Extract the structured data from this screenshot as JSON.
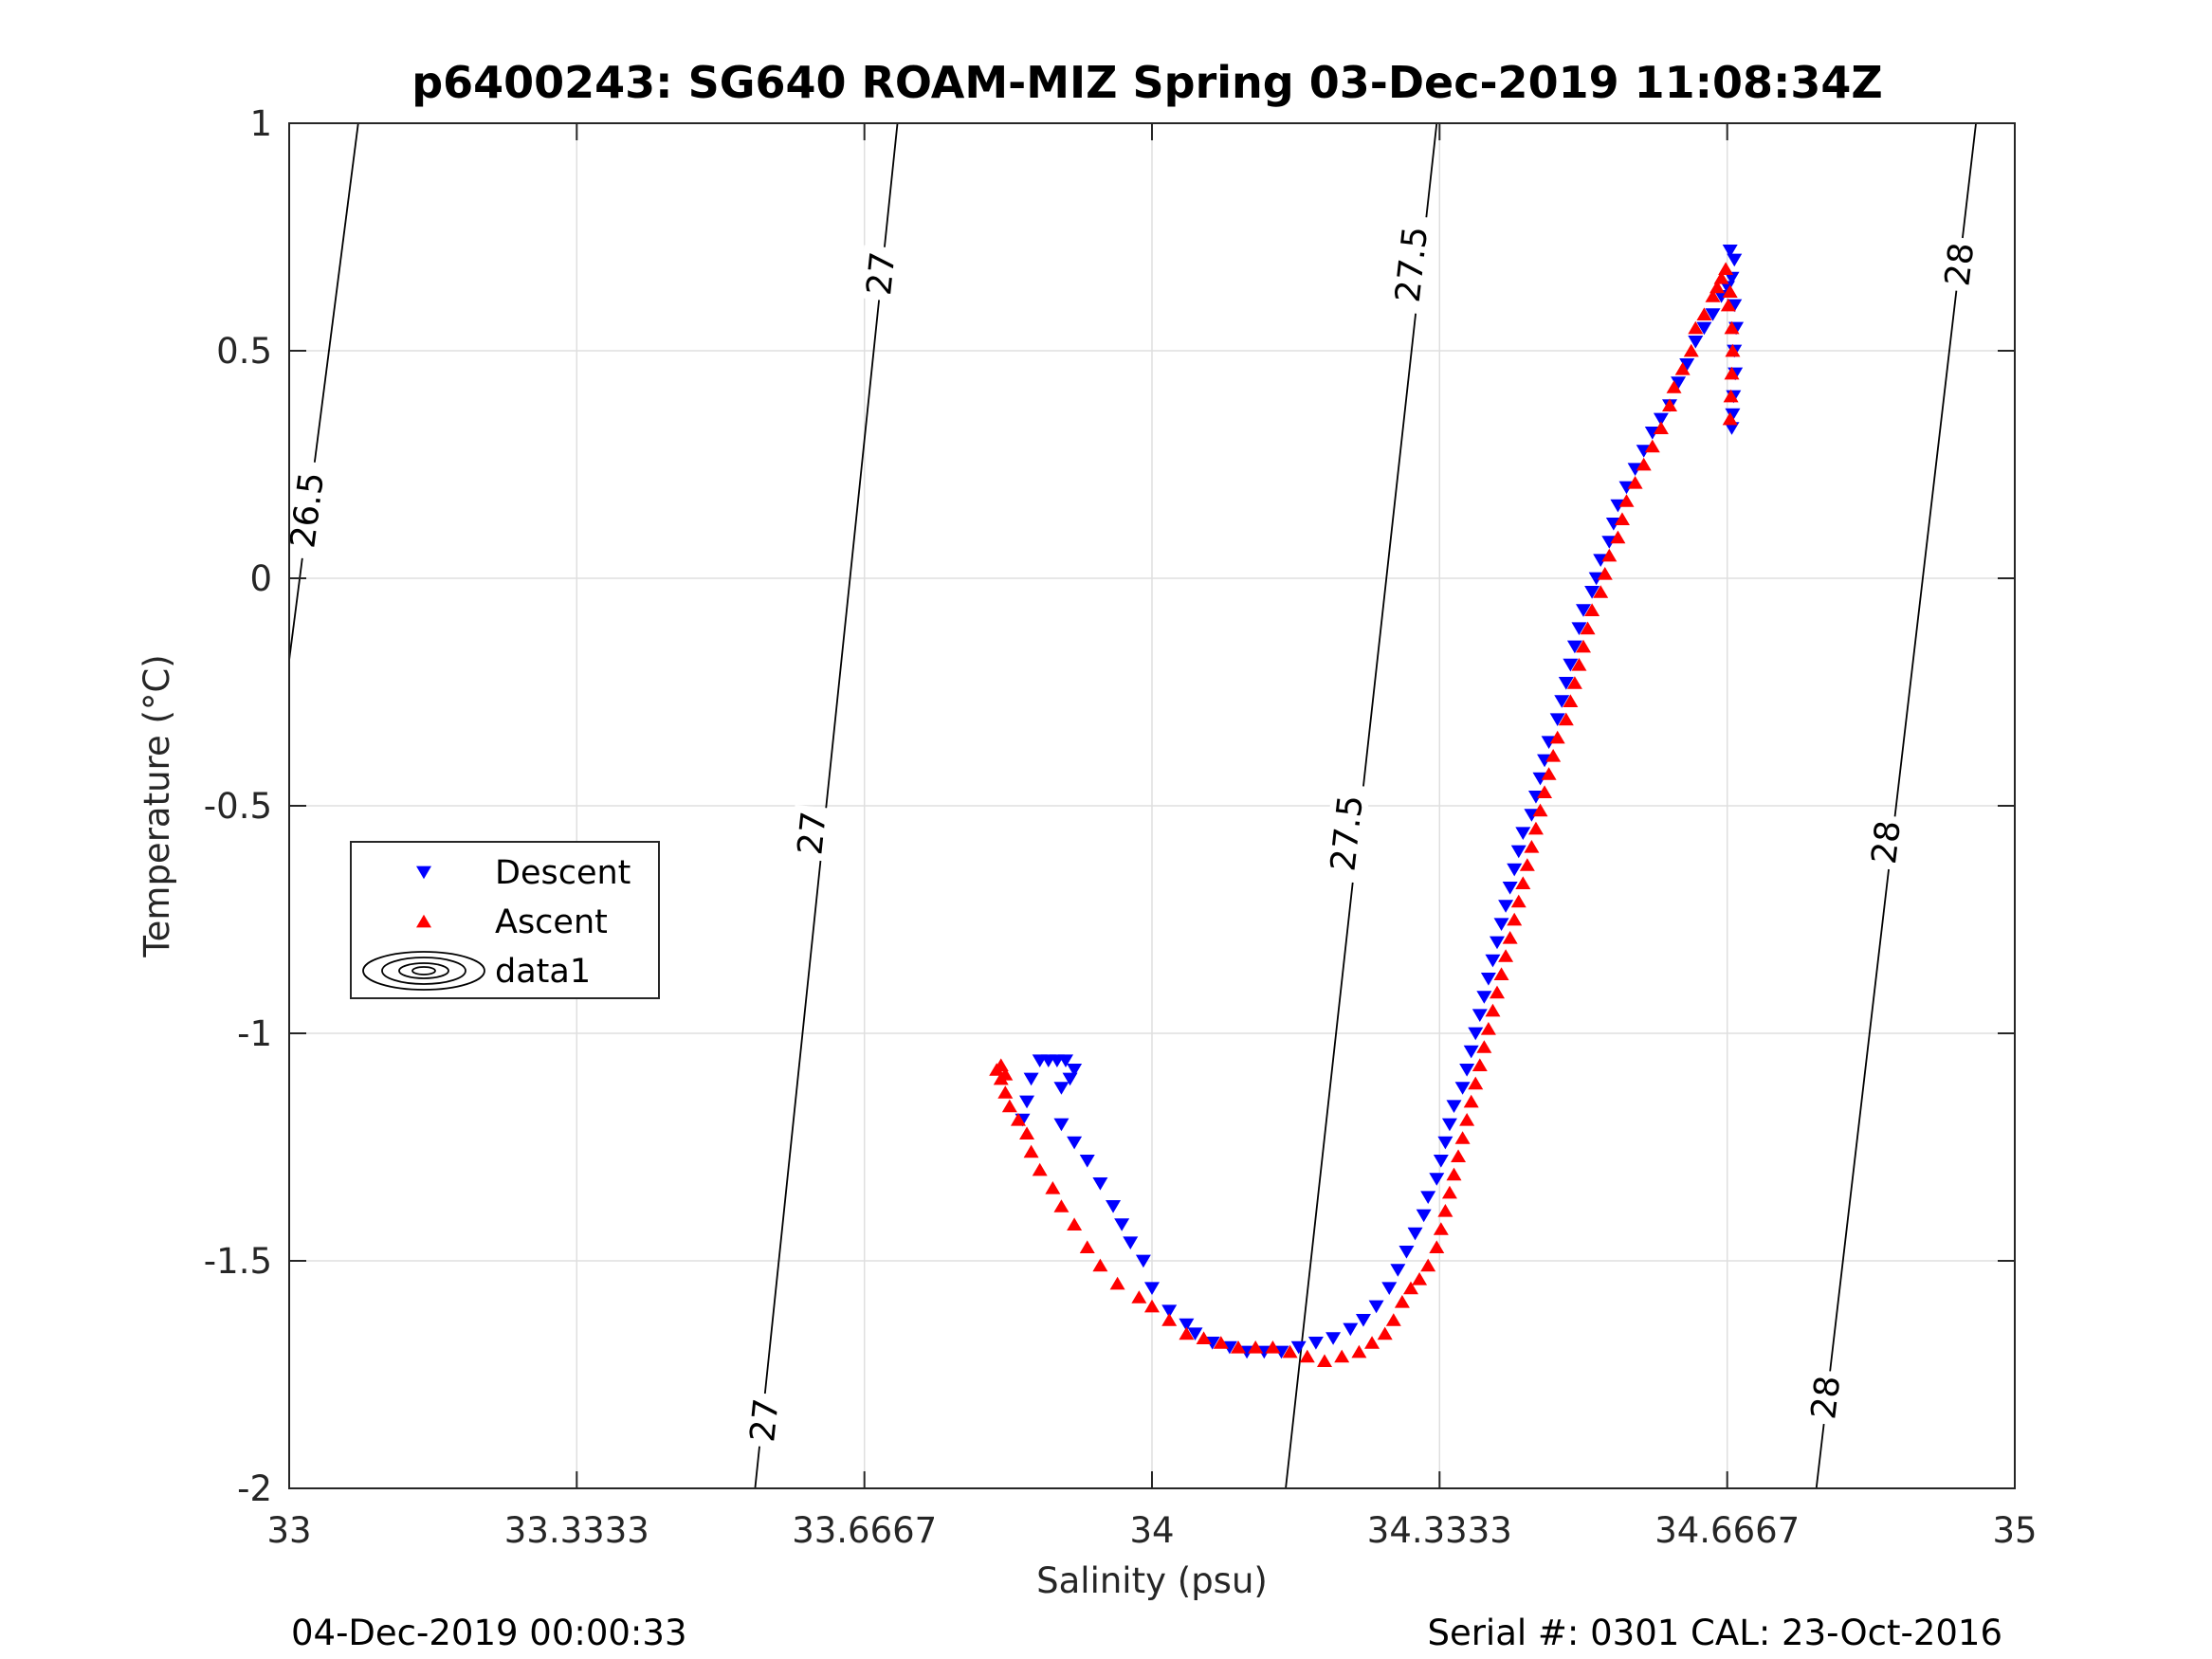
{
  "chart_data": {
    "type": "scatter",
    "title": "p6400243: SG640 ROAM-MIZ Spring 03-Dec-2019 11:08:34Z",
    "xlabel": "Salinity (psu)",
    "ylabel": "Temperature (°C)",
    "xlim": [
      33,
      35
    ],
    "ylim": [
      -2,
      1
    ],
    "xticks": [
      33,
      33.3333,
      33.6667,
      34,
      34.3333,
      34.6667,
      35
    ],
    "xtick_labels": [
      "33",
      "33.3333",
      "33.6667",
      "34",
      "34.3333",
      "34.6667",
      "35"
    ],
    "yticks": [
      -2,
      -1.5,
      -1,
      -0.5,
      0,
      0.5,
      1
    ],
    "ytick_labels": [
      "-2",
      "-1.5",
      "-1",
      "-0.5",
      "0",
      "0.5",
      "1"
    ],
    "grid": true,
    "legend": {
      "placement": "left-middle",
      "entries": [
        "Descent",
        "Ascent",
        "data1"
      ]
    },
    "isopycnals": [
      {
        "label": "26.5",
        "points": [
          [
            33.0,
            -0.18
          ],
          [
            33.08,
            1.0
          ]
        ],
        "label_positions": [
          [
            33.02,
            0.15
          ]
        ]
      },
      {
        "label": "27",
        "points": [
          [
            33.54,
            -2.0
          ],
          [
            33.705,
            1.0
          ]
        ],
        "label_positions": [
          [
            33.55,
            -1.85
          ],
          [
            33.605,
            -0.56
          ],
          [
            33.685,
            0.67
          ]
        ]
      },
      {
        "label": "27.5",
        "points": [
          [
            34.155,
            -2.0
          ],
          [
            34.33,
            1.0
          ]
        ],
        "label_positions": [
          [
            34.225,
            -0.56
          ],
          [
            34.3,
            0.69
          ]
        ]
      },
      {
        "label": "28",
        "points": [
          [
            34.77,
            -2.0
          ],
          [
            34.955,
            1.0
          ]
        ],
        "label_positions": [
          [
            34.78,
            -1.8
          ],
          [
            34.85,
            -0.58
          ],
          [
            34.935,
            0.69
          ]
        ]
      }
    ],
    "series": [
      {
        "name": "Descent",
        "color": "#0000ff",
        "marker": "triangle-down",
        "points": [
          [
            34.67,
            0.72
          ],
          [
            34.675,
            0.7
          ],
          [
            34.672,
            0.66
          ],
          [
            34.675,
            0.6
          ],
          [
            34.677,
            0.55
          ],
          [
            34.675,
            0.5
          ],
          [
            34.676,
            0.45
          ],
          [
            34.674,
            0.4
          ],
          [
            34.673,
            0.36
          ],
          [
            34.672,
            0.33
          ],
          [
            34.667,
            0.64
          ],
          [
            34.66,
            0.62
          ],
          [
            34.65,
            0.58
          ],
          [
            34.64,
            0.55
          ],
          [
            34.63,
            0.52
          ],
          [
            34.62,
            0.47
          ],
          [
            34.61,
            0.43
          ],
          [
            34.6,
            0.38
          ],
          [
            34.59,
            0.35
          ],
          [
            34.58,
            0.32
          ],
          [
            34.57,
            0.28
          ],
          [
            34.56,
            0.24
          ],
          [
            34.55,
            0.2
          ],
          [
            34.54,
            0.16
          ],
          [
            34.535,
            0.12
          ],
          [
            34.53,
            0.08
          ],
          [
            34.52,
            0.04
          ],
          [
            34.515,
            0.0
          ],
          [
            34.51,
            -0.03
          ],
          [
            34.5,
            -0.07
          ],
          [
            34.495,
            -0.11
          ],
          [
            34.49,
            -0.15
          ],
          [
            34.485,
            -0.19
          ],
          [
            34.48,
            -0.23
          ],
          [
            34.475,
            -0.27
          ],
          [
            34.47,
            -0.31
          ],
          [
            34.46,
            -0.36
          ],
          [
            34.455,
            -0.4
          ],
          [
            34.45,
            -0.44
          ],
          [
            34.445,
            -0.48
          ],
          [
            34.44,
            -0.52
          ],
          [
            34.43,
            -0.56
          ],
          [
            34.425,
            -0.6
          ],
          [
            34.42,
            -0.64
          ],
          [
            34.415,
            -0.68
          ],
          [
            34.41,
            -0.72
          ],
          [
            34.405,
            -0.76
          ],
          [
            34.4,
            -0.8
          ],
          [
            34.395,
            -0.84
          ],
          [
            34.39,
            -0.88
          ],
          [
            34.385,
            -0.92
          ],
          [
            34.38,
            -0.96
          ],
          [
            34.375,
            -1.0
          ],
          [
            34.37,
            -1.04
          ],
          [
            34.365,
            -1.08
          ],
          [
            34.36,
            -1.12
          ],
          [
            34.35,
            -1.16
          ],
          [
            34.345,
            -1.2
          ],
          [
            34.34,
            -1.24
          ],
          [
            34.335,
            -1.28
          ],
          [
            34.33,
            -1.32
          ],
          [
            34.32,
            -1.36
          ],
          [
            34.315,
            -1.4
          ],
          [
            34.305,
            -1.44
          ],
          [
            34.295,
            -1.48
          ],
          [
            34.285,
            -1.52
          ],
          [
            34.275,
            -1.56
          ],
          [
            34.26,
            -1.6
          ],
          [
            34.245,
            -1.63
          ],
          [
            34.23,
            -1.65
          ],
          [
            34.21,
            -1.67
          ],
          [
            34.19,
            -1.68
          ],
          [
            34.17,
            -1.69
          ],
          [
            34.15,
            -1.7
          ],
          [
            34.13,
            -1.7
          ],
          [
            34.11,
            -1.7
          ],
          [
            34.09,
            -1.69
          ],
          [
            34.07,
            -1.68
          ],
          [
            34.05,
            -1.66
          ],
          [
            34.04,
            -1.64
          ],
          [
            34.02,
            -1.61
          ],
          [
            34.0,
            -1.56
          ],
          [
            33.99,
            -1.5
          ],
          [
            33.975,
            -1.46
          ],
          [
            33.965,
            -1.42
          ],
          [
            33.955,
            -1.38
          ],
          [
            33.94,
            -1.33
          ],
          [
            33.925,
            -1.28
          ],
          [
            33.91,
            -1.24
          ],
          [
            33.895,
            -1.2
          ],
          [
            33.895,
            -1.12
          ],
          [
            33.905,
            -1.1
          ],
          [
            33.91,
            -1.08
          ],
          [
            33.9,
            -1.06
          ],
          [
            33.89,
            -1.06
          ],
          [
            33.88,
            -1.06
          ],
          [
            33.87,
            -1.06
          ],
          [
            33.86,
            -1.1
          ],
          [
            33.855,
            -1.15
          ],
          [
            33.85,
            -1.19
          ]
        ]
      },
      {
        "name": "Ascent",
        "color": "#ff0000",
        "marker": "triangle-up",
        "points": [
          [
            34.665,
            0.68
          ],
          [
            34.66,
            0.66
          ],
          [
            34.655,
            0.64
          ],
          [
            34.67,
            0.63
          ],
          [
            34.668,
            0.6
          ],
          [
            34.672,
            0.55
          ],
          [
            34.673,
            0.5
          ],
          [
            34.672,
            0.45
          ],
          [
            34.671,
            0.4
          ],
          [
            34.67,
            0.35
          ],
          [
            34.65,
            0.62
          ],
          [
            34.64,
            0.58
          ],
          [
            34.63,
            0.55
          ],
          [
            34.625,
            0.5
          ],
          [
            34.615,
            0.46
          ],
          [
            34.605,
            0.42
          ],
          [
            34.6,
            0.38
          ],
          [
            34.59,
            0.33
          ],
          [
            34.58,
            0.29
          ],
          [
            34.57,
            0.25
          ],
          [
            34.56,
            0.21
          ],
          [
            34.55,
            0.17
          ],
          [
            34.545,
            0.13
          ],
          [
            34.54,
            0.09
          ],
          [
            34.53,
            0.05
          ],
          [
            34.525,
            0.01
          ],
          [
            34.52,
            -0.03
          ],
          [
            34.51,
            -0.07
          ],
          [
            34.505,
            -0.11
          ],
          [
            34.5,
            -0.15
          ],
          [
            34.495,
            -0.19
          ],
          [
            34.49,
            -0.23
          ],
          [
            34.485,
            -0.27
          ],
          [
            34.48,
            -0.31
          ],
          [
            34.47,
            -0.35
          ],
          [
            34.465,
            -0.39
          ],
          [
            34.46,
            -0.43
          ],
          [
            34.455,
            -0.47
          ],
          [
            34.45,
            -0.51
          ],
          [
            34.445,
            -0.55
          ],
          [
            34.44,
            -0.59
          ],
          [
            34.435,
            -0.63
          ],
          [
            34.43,
            -0.67
          ],
          [
            34.425,
            -0.71
          ],
          [
            34.42,
            -0.75
          ],
          [
            34.415,
            -0.79
          ],
          [
            34.41,
            -0.83
          ],
          [
            34.405,
            -0.87
          ],
          [
            34.4,
            -0.91
          ],
          [
            34.395,
            -0.95
          ],
          [
            34.39,
            -0.99
          ],
          [
            34.385,
            -1.03
          ],
          [
            34.38,
            -1.07
          ],
          [
            34.375,
            -1.11
          ],
          [
            34.37,
            -1.15
          ],
          [
            34.365,
            -1.19
          ],
          [
            34.36,
            -1.23
          ],
          [
            34.355,
            -1.27
          ],
          [
            34.35,
            -1.31
          ],
          [
            34.345,
            -1.35
          ],
          [
            34.34,
            -1.39
          ],
          [
            34.335,
            -1.43
          ],
          [
            34.33,
            -1.47
          ],
          [
            34.32,
            -1.51
          ],
          [
            34.31,
            -1.54
          ],
          [
            34.3,
            -1.56
          ],
          [
            34.29,
            -1.59
          ],
          [
            34.28,
            -1.63
          ],
          [
            34.27,
            -1.66
          ],
          [
            34.255,
            -1.68
          ],
          [
            34.24,
            -1.7
          ],
          [
            34.22,
            -1.71
          ],
          [
            34.2,
            -1.72
          ],
          [
            34.18,
            -1.71
          ],
          [
            34.16,
            -1.7
          ],
          [
            34.14,
            -1.69
          ],
          [
            34.12,
            -1.69
          ],
          [
            34.1,
            -1.69
          ],
          [
            34.08,
            -1.68
          ],
          [
            34.06,
            -1.67
          ],
          [
            34.04,
            -1.66
          ],
          [
            34.02,
            -1.63
          ],
          [
            34.0,
            -1.6
          ],
          [
            33.985,
            -1.58
          ],
          [
            33.96,
            -1.55
          ],
          [
            33.94,
            -1.51
          ],
          [
            33.925,
            -1.47
          ],
          [
            33.91,
            -1.42
          ],
          [
            33.895,
            -1.38
          ],
          [
            33.885,
            -1.34
          ],
          [
            33.87,
            -1.3
          ],
          [
            33.86,
            -1.26
          ],
          [
            33.855,
            -1.22
          ],
          [
            33.845,
            -1.19
          ],
          [
            33.835,
            -1.16
          ],
          [
            33.83,
            -1.13
          ],
          [
            33.825,
            -1.1
          ],
          [
            33.82,
            -1.08
          ],
          [
            33.825,
            -1.07
          ],
          [
            33.83,
            -1.09
          ]
        ]
      }
    ]
  },
  "footer": {
    "left": "04-Dec-2019 00:00:33",
    "right": "Serial #: 0301  CAL: 23-Oct-2016"
  },
  "colors": {
    "descent": "#0000ff",
    "ascent": "#ff0000",
    "grid": "#dfdfdf",
    "axis": "#262626"
  }
}
